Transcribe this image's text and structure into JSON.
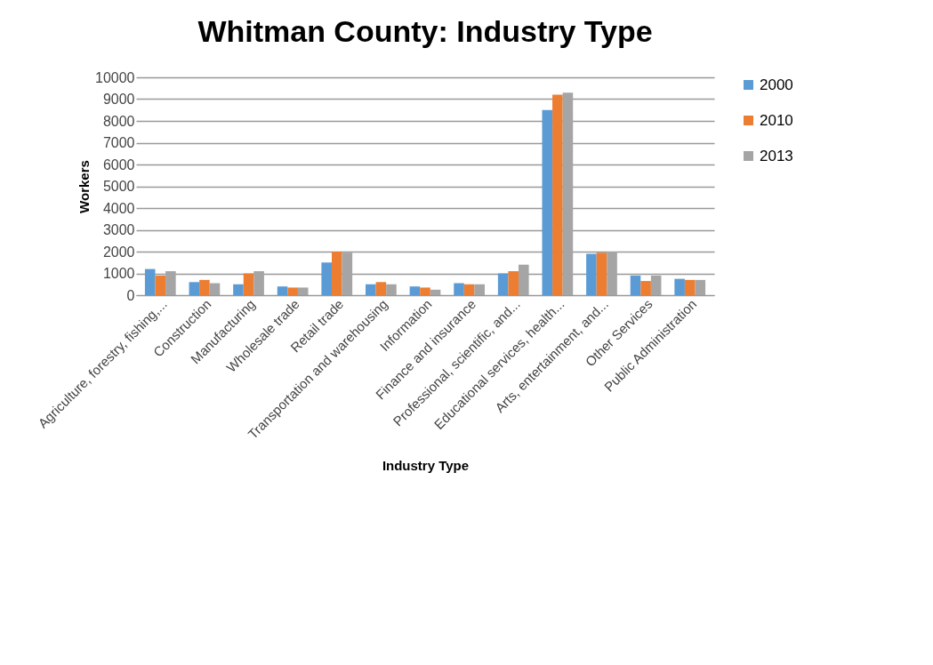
{
  "chart_data": {
    "type": "bar",
    "title": "Whitman County: Industry Type",
    "xlabel": "Industry Type",
    "ylabel": "Workers",
    "categories": [
      "Agriculture, forestry, fishing,...",
      "Construction",
      "Manufacturing",
      "Wholesale trade",
      "Retail trade",
      "Transportation and warehousing",
      "Information",
      "Finance and insurance",
      "Professional, scientific, and...",
      "Educational services, health...",
      "Arts, entertainment, and...",
      "Other Services",
      "Public Administration"
    ],
    "series": [
      {
        "name": "2000",
        "color": "#5b9bd5",
        "values": [
          1200,
          600,
          500,
          400,
          1500,
          500,
          400,
          550,
          1000,
          8500,
          1900,
          900,
          750
        ]
      },
      {
        "name": "2010",
        "color": "#ed7d31",
        "values": [
          900,
          700,
          1000,
          350,
          2000,
          600,
          350,
          500,
          1100,
          9200,
          1950,
          650,
          700
        ]
      },
      {
        "name": "2013",
        "color": "#a5a5a5",
        "values": [
          1100,
          550,
          1100,
          350,
          1950,
          500,
          250,
          500,
          1400,
          9300,
          2000,
          900,
          700
        ]
      }
    ],
    "ylim": [
      0,
      10000
    ],
    "yticks": [
      0,
      1000,
      2000,
      3000,
      4000,
      5000,
      6000,
      7000,
      8000,
      9000,
      10000
    ],
    "grid": "y",
    "legend": "right"
  }
}
